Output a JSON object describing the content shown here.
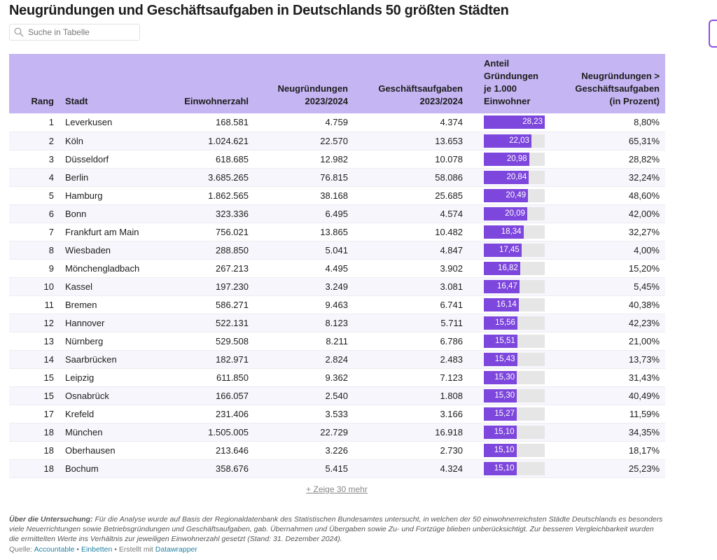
{
  "title": "Neugründungen und Geschäftsaufgaben in Deutschlands 50 größten Städten",
  "search": {
    "placeholder": "Suche in Tabelle",
    "icon": "search-icon"
  },
  "colors": {
    "header": "#c5b5f2",
    "bar": "#7d46dc",
    "bar_track": "#e6e6e6"
  },
  "columns": [
    "Rang",
    "Stadt",
    "Einwohnerzahl",
    "Neugründungen 2023/2024",
    "Geschäftsaufgaben 2023/2024",
    "Anteil Gründungen je 1.000 Einwohner",
    "Neugründungen > Geschäftsaufgaben (in Prozent)"
  ],
  "rows": [
    [
      "1",
      "Leverkusen",
      "168.581",
      "4.759",
      "4.374",
      "28,23",
      "8,80%"
    ],
    [
      "2",
      "Köln",
      "1.024.621",
      "22.570",
      "13.653",
      "22,03",
      "65,31%"
    ],
    [
      "3",
      "Düsseldorf",
      "618.685",
      "12.982",
      "10.078",
      "20,98",
      "28,82%"
    ],
    [
      "4",
      "Berlin",
      "3.685.265",
      "76.815",
      "58.086",
      "20,84",
      "32,24%"
    ],
    [
      "5",
      "Hamburg",
      "1.862.565",
      "38.168",
      "25.685",
      "20,49",
      "48,60%"
    ],
    [
      "6",
      "Bonn",
      "323.336",
      "6.495",
      "4.574",
      "20,09",
      "42,00%"
    ],
    [
      "7",
      "Frankfurt am Main",
      "756.021",
      "13.865",
      "10.482",
      "18,34",
      "32,27%"
    ],
    [
      "8",
      "Wiesbaden",
      "288.850",
      "5.041",
      "4.847",
      "17,45",
      "4,00%"
    ],
    [
      "9",
      "Mönchengladbach",
      "267.213",
      "4.495",
      "3.902",
      "16,82",
      "15,20%"
    ],
    [
      "10",
      "Kassel",
      "197.230",
      "3.249",
      "3.081",
      "16,47",
      "5,45%"
    ],
    [
      "11",
      "Bremen",
      "586.271",
      "9.463",
      "6.741",
      "16,14",
      "40,38%"
    ],
    [
      "12",
      "Hannover",
      "522.131",
      "8.123",
      "5.711",
      "15,56",
      "42,23%"
    ],
    [
      "13",
      "Nürnberg",
      "529.508",
      "8.211",
      "6.786",
      "15,51",
      "21,00%"
    ],
    [
      "14",
      "Saarbrücken",
      "182.971",
      "2.824",
      "2.483",
      "15,43",
      "13,73%"
    ],
    [
      "15",
      "Leipzig",
      "611.850",
      "9.362",
      "7.123",
      "15,30",
      "31,43%"
    ],
    [
      "15",
      "Osnabrück",
      "166.057",
      "2.540",
      "1.808",
      "15,30",
      "40,49%"
    ],
    [
      "17",
      "Krefeld",
      "231.406",
      "3.533",
      "3.166",
      "15,27",
      "11,59%"
    ],
    [
      "18",
      "München",
      "1.505.005",
      "22.729",
      "16.918",
      "15,10",
      "34,35%"
    ],
    [
      "18",
      "Oberhausen",
      "213.646",
      "3.226",
      "2.730",
      "15,10",
      "18,17%"
    ],
    [
      "18",
      "Bochum",
      "358.676",
      "5.415",
      "4.324",
      "15,10",
      "25,23%"
    ]
  ],
  "bar_max": 28.23,
  "show_more": "+ Zeige 30 mehr",
  "notes": {
    "label": "Über die Untersuchung:",
    "text": " Für die Analyse wurde auf Basis der Regionaldatenbank des Statistischen Bundesamtes untersucht, in welchen der 50 einwohnerreichsten Städte Deutschlands es besonders viele Neuerrichtungen sowie Betriebsgründungen und Geschäftsaufgaben, gab. Übernahmen und Übergaben sowie Zu- und Fortzüge blieben unberücksichtigt. Zur besseren Vergleichbarkeit wurden die ermittelten Werte ins Verhältnis zur jeweiligen Einwohnerzahl gesetzt (Stand: 31. Dezember 2024)."
  },
  "source": {
    "label": "Quelle:",
    "source_link": "Accountable",
    "sep": "•",
    "embed_link": "Einbetten",
    "created": "• Erstellt mit",
    "tool_link": "Datawrapper"
  }
}
